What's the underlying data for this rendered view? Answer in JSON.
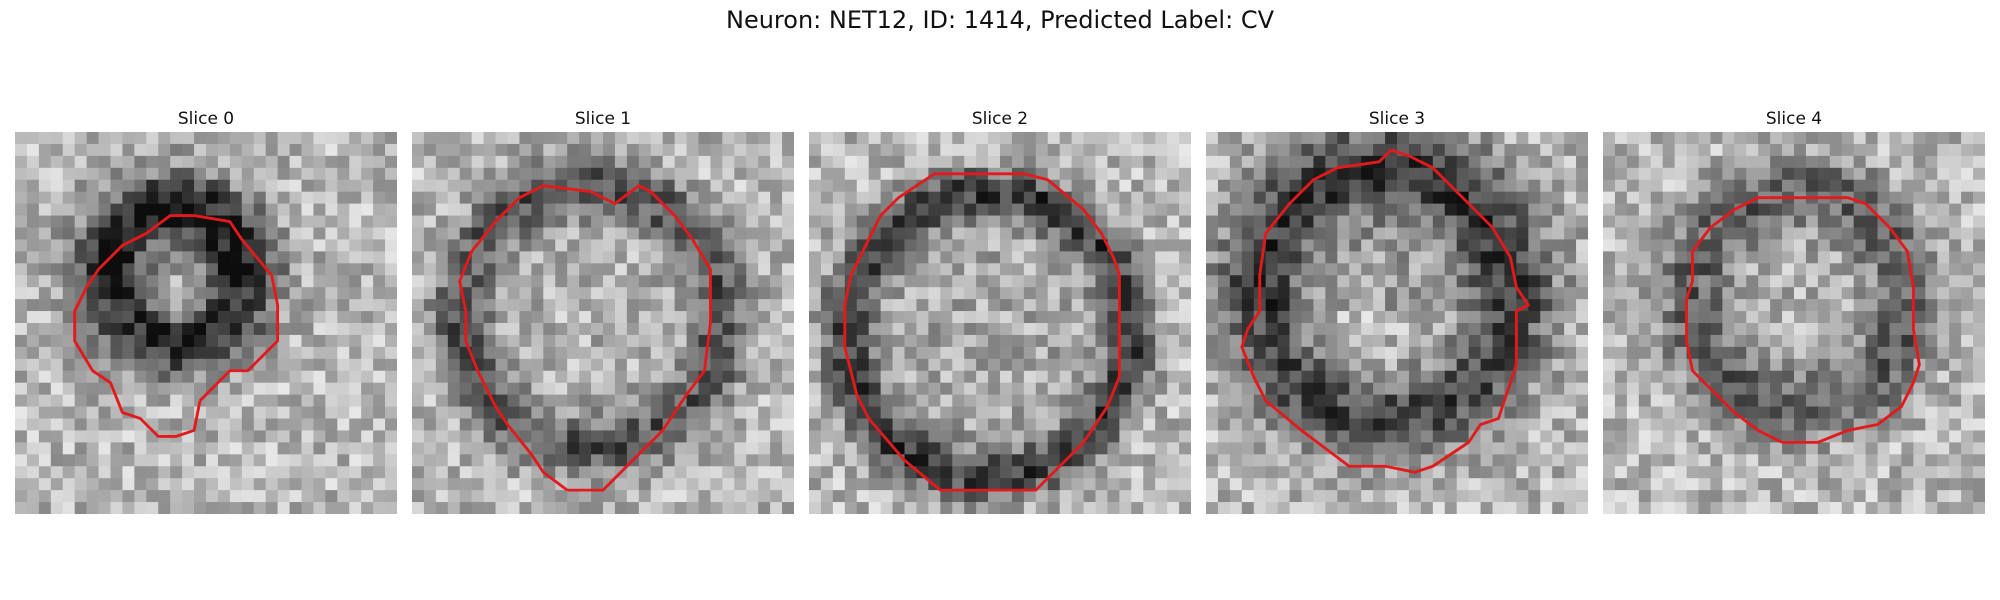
{
  "figure": {
    "title": "Neuron: NET12, ID: 1414, Predicted Label: CV",
    "outline_color": "#e31a1c"
  },
  "slices": [
    {
      "title": "Slice 0",
      "dark_region": "upper-center ring",
      "contour": [
        [
          15.5,
          22.5
        ],
        [
          18,
          20
        ],
        [
          19.5,
          20
        ],
        [
          22,
          17.5
        ],
        [
          22,
          14.5
        ],
        [
          21.5,
          12
        ],
        [
          19,
          9
        ],
        [
          18,
          7.5
        ],
        [
          15,
          7
        ],
        [
          13,
          7
        ],
        [
          11,
          8.5
        ],
        [
          9,
          9.5
        ],
        [
          7,
          11.5
        ],
        [
          6,
          13
        ],
        [
          5,
          15
        ],
        [
          5,
          17.5
        ],
        [
          6.5,
          20
        ],
        [
          8,
          21
        ],
        [
          9,
          23.5
        ],
        [
          10.5,
          24
        ],
        [
          12,
          25.5
        ],
        [
          13.5,
          25.5
        ],
        [
          15,
          25
        ]
      ]
    },
    {
      "title": "Slice 1",
      "contour": [
        [
          13,
          30
        ],
        [
          16,
          30
        ],
        [
          18.5,
          27.5
        ],
        [
          21,
          25
        ],
        [
          23,
          22
        ],
        [
          24.5,
          20
        ],
        [
          25,
          16
        ],
        [
          25,
          11.5
        ],
        [
          23.5,
          9
        ],
        [
          22,
          7
        ],
        [
          20,
          5
        ],
        [
          19,
          4.5
        ],
        [
          17,
          6
        ],
        [
          15,
          5
        ],
        [
          11,
          4.5
        ],
        [
          9,
          5.5
        ],
        [
          7,
          7.5
        ],
        [
          5,
          10
        ],
        [
          4,
          12.5
        ],
        [
          4.5,
          15
        ],
        [
          4.5,
          17.5
        ],
        [
          5.5,
          20
        ],
        [
          7,
          23
        ],
        [
          8,
          24.5
        ],
        [
          10,
          27
        ],
        [
          11,
          28.5
        ]
      ]
    },
    {
      "title": "Slice 2",
      "contour": [
        [
          15,
          3.5
        ],
        [
          18,
          3.5
        ],
        [
          20,
          4
        ],
        [
          23,
          6.5
        ],
        [
          24.5,
          8.5
        ],
        [
          25.5,
          10.5
        ],
        [
          26,
          12
        ],
        [
          26,
          14
        ],
        [
          26,
          17.5
        ],
        [
          26,
          20.5
        ],
        [
          25,
          23
        ],
        [
          23,
          26
        ],
        [
          21,
          28
        ],
        [
          19,
          30
        ],
        [
          15,
          30
        ],
        [
          11,
          30
        ],
        [
          8,
          27.5
        ],
        [
          5,
          24
        ],
        [
          4,
          22
        ],
        [
          3,
          18
        ],
        [
          3,
          14.5
        ],
        [
          3.5,
          12
        ],
        [
          5,
          9
        ],
        [
          6,
          7
        ],
        [
          7.5,
          5.5
        ],
        [
          10.5,
          3.5
        ],
        [
          12.5,
          3.5
        ]
      ]
    },
    {
      "title": "Slice 3",
      "contour": [
        [
          15.5,
          1.5
        ],
        [
          17,
          2
        ],
        [
          19,
          3
        ],
        [
          21.5,
          5.5
        ],
        [
          24,
          8
        ],
        [
          25.5,
          10.5
        ],
        [
          26,
          13
        ],
        [
          27,
          14.5
        ],
        [
          26,
          15
        ],
        [
          26,
          19.5
        ],
        [
          25,
          22.5
        ],
        [
          24.5,
          24
        ],
        [
          23,
          24.5
        ],
        [
          22,
          26
        ],
        [
          19,
          28
        ],
        [
          17.5,
          28.5
        ],
        [
          15,
          28
        ],
        [
          12,
          28
        ],
        [
          10,
          26.5
        ],
        [
          8,
          25
        ],
        [
          5,
          22.5
        ],
        [
          4,
          20.5
        ],
        [
          3,
          18
        ],
        [
          3.5,
          16.5
        ],
        [
          4.5,
          15
        ],
        [
          4.5,
          12
        ],
        [
          5,
          8.5
        ],
        [
          7,
          6
        ],
        [
          9,
          4
        ],
        [
          11,
          3
        ],
        [
          14.5,
          2.5
        ]
      ]
    },
    {
      "title": "Slice 4",
      "contour": [
        [
          15,
          26
        ],
        [
          18,
          26
        ],
        [
          20.5,
          25
        ],
        [
          23,
          24.5
        ],
        [
          25,
          23
        ],
        [
          26,
          21
        ],
        [
          26.5,
          19.5
        ],
        [
          26,
          16.5
        ],
        [
          26,
          13
        ],
        [
          25.5,
          10
        ],
        [
          24,
          8
        ],
        [
          22,
          6
        ],
        [
          20.5,
          5.5
        ],
        [
          18,
          5.5
        ],
        [
          13,
          5.5
        ],
        [
          11,
          6.5
        ],
        [
          9,
          8
        ],
        [
          7.5,
          10
        ],
        [
          7.5,
          12.5
        ],
        [
          7,
          14
        ],
        [
          7,
          17.5
        ],
        [
          7.5,
          20
        ],
        [
          9,
          21.5
        ],
        [
          11,
          23.5
        ],
        [
          13,
          25
        ]
      ]
    }
  ]
}
